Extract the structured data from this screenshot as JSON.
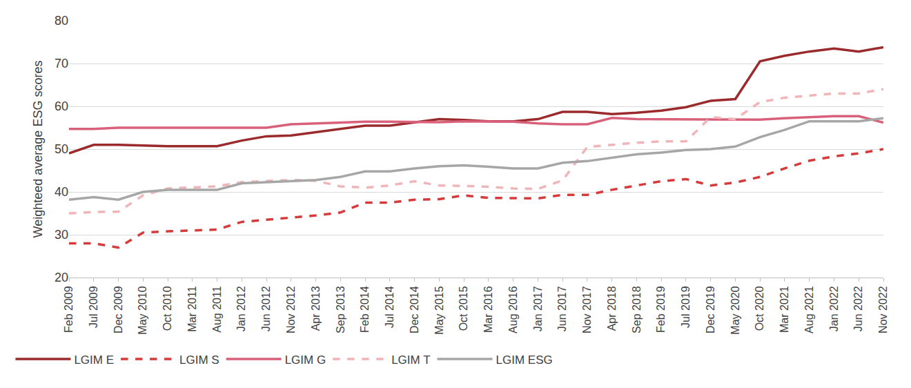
{
  "chart_data": {
    "type": "line",
    "y_label": "Weighteed average ESG scores",
    "categories": [
      "Feb 2009",
      "Jul 2009",
      "Dec 2009",
      "May 2010",
      "Oct 2010",
      "Mar 2011",
      "Aug 2011",
      "Jan 2012",
      "Jun 2012",
      "Nov 2012",
      "Apr 2013",
      "Sep 2013",
      "Feb 2014",
      "Jul 2014",
      "Dec 2014",
      "May 2015",
      "Oct 2015",
      "Mar 2016",
      "Aug 2016",
      "Jan 2017",
      "Jun 2017",
      "Nov 2017",
      "Apr 2018",
      "Sep 2018",
      "Feb 2019",
      "Jul 2019",
      "Dec 2019",
      "May 2020",
      "Oct 2020",
      "Mar 2021",
      "Aug 2021",
      "Jan 2022",
      "Jun 2022",
      "Nov 2022"
    ],
    "series": [
      {
        "name": "LGIM E",
        "color": "#9b2a2d",
        "line_style": "solid",
        "values": [
          49,
          51,
          51,
          50.8,
          50.7,
          50.7,
          50.7,
          52,
          53,
          53.2,
          54,
          54.8,
          55.5,
          55.5,
          56.3,
          57,
          56.8,
          56.5,
          56.5,
          57,
          58.7,
          58.7,
          58.2,
          58.5,
          59,
          59.8,
          61.3,
          61.7,
          70.5,
          71.8,
          72.8,
          73.5,
          72.8,
          73.8
        ]
      },
      {
        "name": "LGIM S",
        "color": "#d63a3a",
        "line_style": "dash",
        "values": [
          28,
          28,
          27,
          30.5,
          30.8,
          31,
          31.2,
          33,
          33.5,
          34,
          34.5,
          35.2,
          37.5,
          37.5,
          38.2,
          38.3,
          39.2,
          38.6,
          38.5,
          38.5,
          39.3,
          39.3,
          40.5,
          41.5,
          42.5,
          43,
          41.5,
          42.2,
          43.5,
          45.5,
          47.3,
          48.3,
          49,
          50
        ]
      },
      {
        "name": "LGIM G",
        "color": "#d9607a",
        "line_style": "solid",
        "values": [
          54.7,
          54.7,
          55,
          55,
          55,
          55,
          55,
          55,
          55,
          55.8,
          56,
          56.3,
          56.4,
          56.4,
          56.3,
          56.3,
          56.5,
          56.5,
          56.4,
          56,
          55.8,
          55.8,
          57.3,
          57,
          57,
          57,
          56.9,
          56.9,
          56.9,
          57.2,
          57.5,
          57.7,
          57.7,
          56.2
        ]
      },
      {
        "name": "LGIM T",
        "color": "#f0b5b8",
        "line_style": "dash",
        "values": [
          35,
          35.3,
          35.4,
          39.2,
          40.8,
          41,
          41.3,
          42.3,
          42.6,
          42.8,
          42.6,
          41.3,
          41,
          41.5,
          42.5,
          41.5,
          41.4,
          41.2,
          40.8,
          40.7,
          42.7,
          50.5,
          51,
          51.5,
          51.8,
          51.8,
          57.5,
          57,
          61,
          62,
          62.5,
          63,
          63,
          64
        ]
      },
      {
        "name": "LGIM ESG",
        "color": "#a6a6a6",
        "line_style": "solid",
        "values": [
          38.2,
          38.8,
          38.2,
          40,
          40.5,
          40.5,
          40.5,
          42,
          42.3,
          42.6,
          42.8,
          43.5,
          44.8,
          44.8,
          45.5,
          46,
          46.2,
          45.9,
          45.5,
          45.5,
          46.8,
          47.2,
          48,
          48.8,
          49.2,
          49.8,
          50,
          50.6,
          52.8,
          54.5,
          56.5,
          56.5,
          56.5,
          57.2
        ]
      }
    ],
    "ylim": [
      20,
      80
    ],
    "yticks": [
      20,
      30,
      40,
      50,
      60,
      70,
      80
    ],
    "grid": true,
    "legend": "bottom"
  }
}
